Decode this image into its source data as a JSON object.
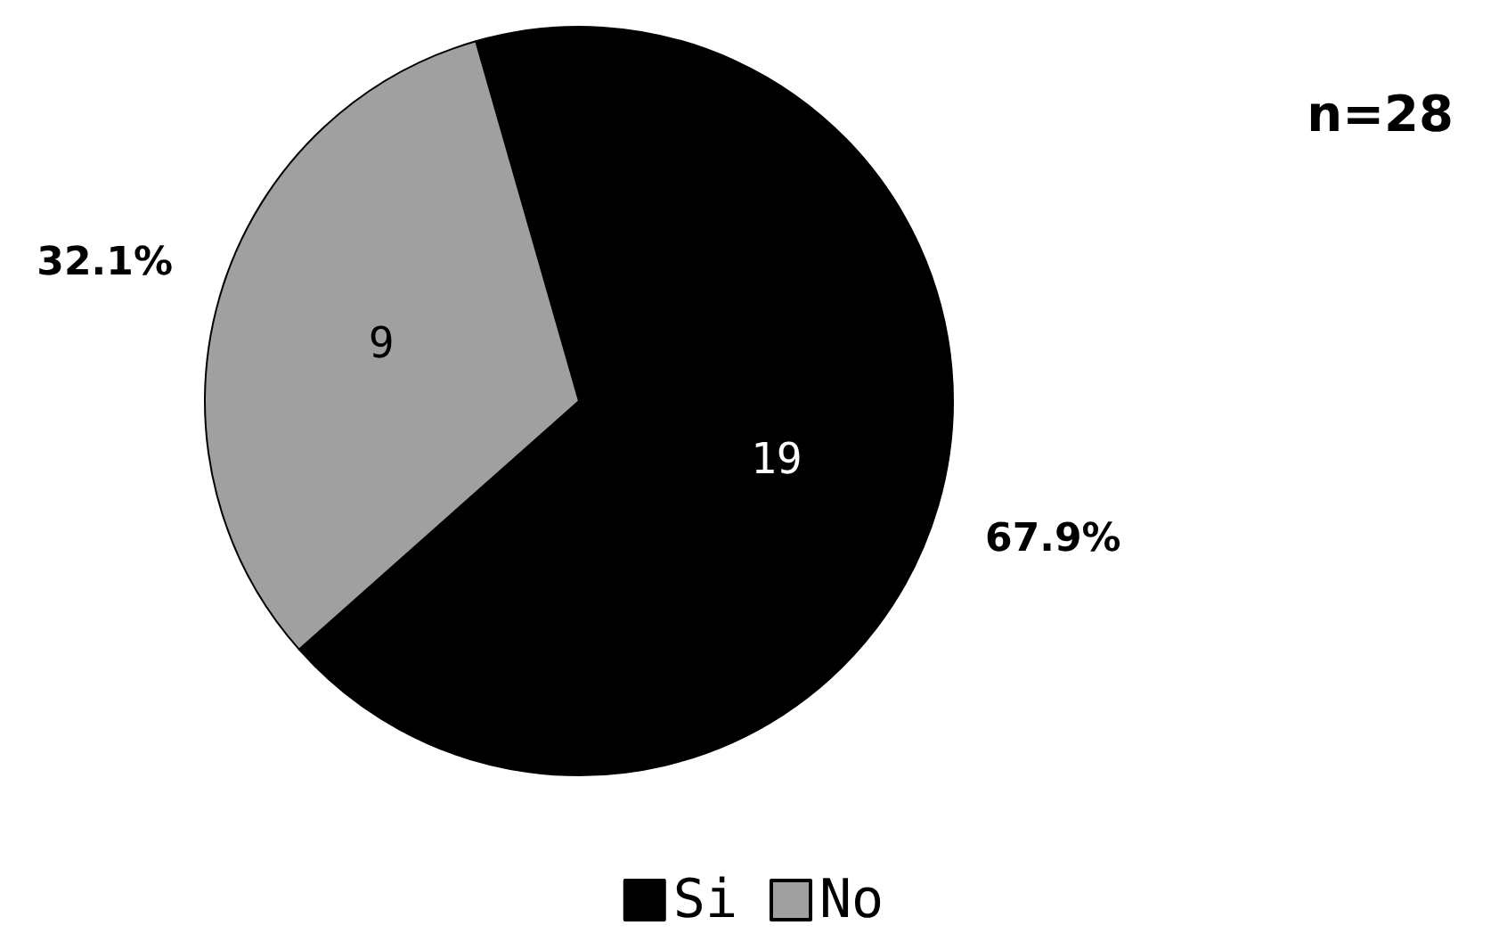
{
  "chart_data": {
    "type": "pie",
    "categories": [
      "Si",
      "No"
    ],
    "values": [
      67.9,
      32.1
    ],
    "colors": [
      "#000000",
      "#a0a0a0"
    ],
    "value_labels": [
      "67.9%",
      "32.1%"
    ],
    "annotations": [
      "n=28",
      {
        "text": "19",
        "x": "Si"
      },
      {
        "text": "9",
        "x": "No"
      }
    ],
    "legend": "bottom"
  }
}
